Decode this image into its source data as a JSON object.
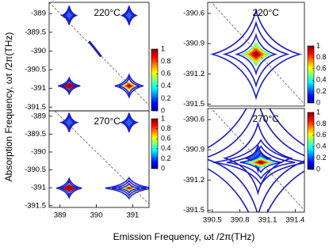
{
  "figure": {
    "xlabel": "Emission Frequency,  ωt /2π(THz)",
    "ylabel": "Absorption Frequency,  ωτ /2π(THz)"
  },
  "chart_data": [
    {
      "type": "contour",
      "annotation": "220°C",
      "xlim": [
        388.7,
        391.45
      ],
      "ylim": [
        -391.6,
        -388.7
      ],
      "yticks": [
        -389,
        -389.5,
        -390,
        -390.5,
        -391,
        -391.5
      ],
      "colorbar": {
        "lim": [
          0,
          1
        ],
        "ticks": [
          1,
          0.8,
          0.6,
          0.4,
          0.2,
          0
        ]
      }
    },
    {
      "type": "contour",
      "annotation": "270°C",
      "xlim": [
        388.7,
        391.45
      ],
      "ylim": [
        -391.55,
        -388.85
      ],
      "xticks": [
        389,
        390,
        391
      ],
      "yticks": [
        -389,
        -389.5,
        -390,
        -390.5,
        -391,
        -391.5
      ],
      "colorbar": {
        "lim": [
          0,
          1
        ],
        "ticks": [
          1,
          0.8,
          0.6,
          0.4,
          0.2,
          0
        ]
      }
    },
    {
      "type": "contour",
      "annotation": "220°C",
      "xlim": [
        390.45,
        391.5
      ],
      "ylim": [
        -391.52,
        -390.49
      ],
      "yticks": [
        -390.6,
        -390.9,
        -391.2,
        -391.5
      ],
      "colorbar": {
        "lim": [
          0,
          1
        ],
        "ticks": [
          1,
          0.8,
          0.6,
          0.4,
          0.2,
          0
        ]
      }
    },
    {
      "type": "contour",
      "annotation": "270°C",
      "xlim": [
        390.45,
        391.5
      ],
      "ylim": [
        -391.52,
        -390.49
      ],
      "xticks": [
        390.5,
        390.8,
        391.1,
        391.4
      ],
      "yticks": [
        -390.6,
        -390.9,
        -391.2,
        -391.5
      ],
      "colorbar": {
        "lim": [
          0,
          1
        ],
        "ticks": [
          1,
          0.8,
          0.6,
          0.4,
          0.2,
          0
        ]
      }
    }
  ]
}
